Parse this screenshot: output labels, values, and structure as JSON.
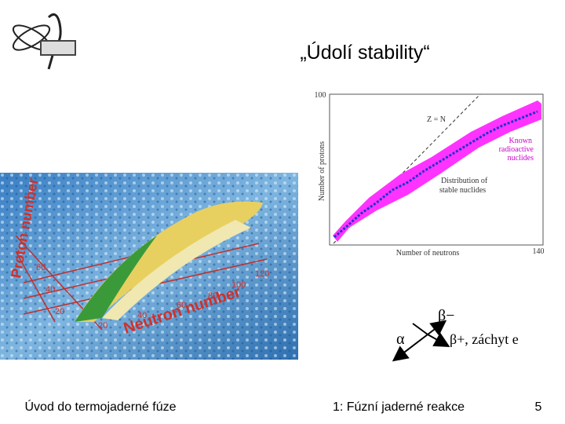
{
  "header": {
    "title": "„Údolí stability“"
  },
  "figure_3d": {
    "y_label": "Proton number",
    "x_label": "Neutron number",
    "x_ticks": [
      "20",
      "40",
      "60",
      "80",
      "100",
      "120"
    ],
    "y_ticks": [
      "20",
      "40",
      "60"
    ]
  },
  "nuclide_chart": {
    "y_max": "100",
    "x_max": "140",
    "y_label": "Number of protons",
    "x_label": "Number of neutrons",
    "line_label": "Z = N",
    "band_label": [
      "Known",
      "radioactive",
      "nuclides"
    ],
    "stable_label": [
      "Distribution of",
      "stable nuclides"
    ]
  },
  "decay": {
    "alpha": "α",
    "beta_minus": "β−",
    "beta_plus": "β+, záchyt e"
  },
  "footer": {
    "left": "Úvod do termojaderné fúze",
    "center": "1: Fúzní jaderné reakce",
    "page": "5"
  }
}
